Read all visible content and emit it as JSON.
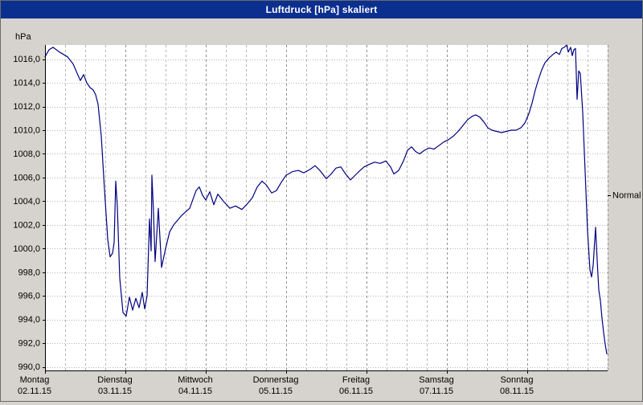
{
  "window": {
    "title": "Luftdruck [hPa] skaliert"
  },
  "colors": {
    "titlebar": "#0b2f8f",
    "title_text": "#ffffff",
    "window_bg": "#d6d3ce",
    "plot_bg": "#ffffff",
    "grid_minor": "#b5b5b5",
    "grid_day": "#8f8f8f",
    "axis": "#000000",
    "line": "#000080"
  },
  "chart_data": {
    "type": "line",
    "title": "Luftdruck [hPa] skaliert",
    "ylabel": "hPa",
    "xlabel": "",
    "x_unit": "days from Monday 02.11.15 00:00",
    "xlim": [
      0,
      7
    ],
    "ylim": [
      989.7,
      1017.2
    ],
    "grid": true,
    "minor_x_step": 0.25,
    "y_ticks": [
      {
        "value": 990,
        "label": "990,0"
      },
      {
        "value": 992,
        "label": "992,0"
      },
      {
        "value": 994,
        "label": "994,0"
      },
      {
        "value": 996,
        "label": "996,0"
      },
      {
        "value": 998,
        "label": "998,0"
      },
      {
        "value": 1000,
        "label": "1000,0"
      },
      {
        "value": 1002,
        "label": "1002,0"
      },
      {
        "value": 1004,
        "label": "1004,0"
      },
      {
        "value": 1006,
        "label": "1006,0"
      },
      {
        "value": 1008,
        "label": "1008,0"
      },
      {
        "value": 1010,
        "label": "1010,0"
      },
      {
        "value": 1012,
        "label": "1012,0"
      },
      {
        "value": 1014,
        "label": "1014,0"
      },
      {
        "value": 1016,
        "label": "1016,0"
      }
    ],
    "x_ticks": [
      {
        "t": 0,
        "day": "Montag",
        "date": "02.11.15"
      },
      {
        "t": 1,
        "day": "Dienstag",
        "date": "03.11.15"
      },
      {
        "t": 2,
        "day": "Mittwoch",
        "date": "04.11.15"
      },
      {
        "t": 3,
        "day": "Donnerstag",
        "date": "05.11.15"
      },
      {
        "t": 4,
        "day": "Freitag",
        "date": "06.11.15"
      },
      {
        "t": 5,
        "day": "Samstag",
        "date": "07.11.15"
      },
      {
        "t": 6,
        "day": "Sonntag",
        "date": "08.11.15"
      }
    ],
    "normal_marker": {
      "value": 1004.5,
      "label": "Normal"
    },
    "series": [
      {
        "name": "Luftdruck",
        "color": "#000080",
        "points": [
          [
            0.0,
            1016.2
          ],
          [
            0.05,
            1016.8
          ],
          [
            0.1,
            1017.0
          ],
          [
            0.18,
            1016.6
          ],
          [
            0.28,
            1016.2
          ],
          [
            0.35,
            1015.6
          ],
          [
            0.4,
            1014.8
          ],
          [
            0.44,
            1014.2
          ],
          [
            0.48,
            1014.7
          ],
          [
            0.52,
            1014.0
          ],
          [
            0.56,
            1013.6
          ],
          [
            0.6,
            1013.4
          ],
          [
            0.63,
            1013.0
          ],
          [
            0.66,
            1012.2
          ],
          [
            0.7,
            1009.5
          ],
          [
            0.74,
            1005.0
          ],
          [
            0.78,
            1000.8
          ],
          [
            0.81,
            999.3
          ],
          [
            0.84,
            999.6
          ],
          [
            0.86,
            1000.5
          ],
          [
            0.88,
            1005.7
          ],
          [
            0.9,
            1003.5
          ],
          [
            0.93,
            997.5
          ],
          [
            0.97,
            994.6
          ],
          [
            1.01,
            994.3
          ],
          [
            1.05,
            995.9
          ],
          [
            1.09,
            994.8
          ],
          [
            1.13,
            995.8
          ],
          [
            1.17,
            995.0
          ],
          [
            1.21,
            996.3
          ],
          [
            1.24,
            994.9
          ],
          [
            1.27,
            996.0
          ],
          [
            1.3,
            1002.5
          ],
          [
            1.32,
            999.8
          ],
          [
            1.33,
            1006.2
          ],
          [
            1.35,
            1003.0
          ],
          [
            1.37,
            998.9
          ],
          [
            1.41,
            1003.4
          ],
          [
            1.45,
            998.4
          ],
          [
            1.5,
            1000.0
          ],
          [
            1.55,
            1001.4
          ],
          [
            1.6,
            1002.0
          ],
          [
            1.7,
            1002.8
          ],
          [
            1.8,
            1003.4
          ],
          [
            1.88,
            1004.9
          ],
          [
            1.92,
            1005.2
          ],
          [
            1.96,
            1004.5
          ],
          [
            2.0,
            1004.1
          ],
          [
            2.05,
            1004.8
          ],
          [
            2.1,
            1003.7
          ],
          [
            2.15,
            1004.6
          ],
          [
            2.22,
            1004.0
          ],
          [
            2.3,
            1003.4
          ],
          [
            2.37,
            1003.6
          ],
          [
            2.45,
            1003.3
          ],
          [
            2.52,
            1003.8
          ],
          [
            2.58,
            1004.3
          ],
          [
            2.64,
            1005.2
          ],
          [
            2.7,
            1005.7
          ],
          [
            2.75,
            1005.4
          ],
          [
            2.82,
            1004.7
          ],
          [
            2.88,
            1004.9
          ],
          [
            2.94,
            1005.6
          ],
          [
            3.0,
            1006.2
          ],
          [
            3.08,
            1006.5
          ],
          [
            3.15,
            1006.6
          ],
          [
            3.22,
            1006.4
          ],
          [
            3.3,
            1006.7
          ],
          [
            3.36,
            1007.0
          ],
          [
            3.42,
            1006.6
          ],
          [
            3.5,
            1005.9
          ],
          [
            3.56,
            1006.3
          ],
          [
            3.62,
            1006.8
          ],
          [
            3.68,
            1006.9
          ],
          [
            3.74,
            1006.3
          ],
          [
            3.8,
            1005.8
          ],
          [
            3.86,
            1006.2
          ],
          [
            3.92,
            1006.6
          ],
          [
            3.97,
            1006.9
          ],
          [
            4.03,
            1007.1
          ],
          [
            4.1,
            1007.3
          ],
          [
            4.17,
            1007.2
          ],
          [
            4.24,
            1007.4
          ],
          [
            4.3,
            1006.9
          ],
          [
            4.34,
            1006.3
          ],
          [
            4.4,
            1006.6
          ],
          [
            4.46,
            1007.4
          ],
          [
            4.51,
            1008.3
          ],
          [
            4.56,
            1008.6
          ],
          [
            4.61,
            1008.2
          ],
          [
            4.66,
            1008.0
          ],
          [
            4.72,
            1008.3
          ],
          [
            4.78,
            1008.5
          ],
          [
            4.84,
            1008.4
          ],
          [
            4.9,
            1008.7
          ],
          [
            4.96,
            1009.0
          ],
          [
            5.02,
            1009.2
          ],
          [
            5.08,
            1009.5
          ],
          [
            5.14,
            1009.9
          ],
          [
            5.2,
            1010.4
          ],
          [
            5.26,
            1010.9
          ],
          [
            5.32,
            1011.2
          ],
          [
            5.36,
            1011.3
          ],
          [
            5.41,
            1011.1
          ],
          [
            5.46,
            1010.7
          ],
          [
            5.51,
            1010.2
          ],
          [
            5.56,
            1010.0
          ],
          [
            5.62,
            1009.9
          ],
          [
            5.68,
            1009.8
          ],
          [
            5.74,
            1009.9
          ],
          [
            5.8,
            1010.0
          ],
          [
            5.86,
            1010.0
          ],
          [
            5.92,
            1010.2
          ],
          [
            5.97,
            1010.6
          ],
          [
            6.02,
            1011.4
          ],
          [
            6.06,
            1012.3
          ],
          [
            6.1,
            1013.4
          ],
          [
            6.14,
            1014.3
          ],
          [
            6.18,
            1015.1
          ],
          [
            6.22,
            1015.7
          ],
          [
            6.27,
            1016.1
          ],
          [
            6.32,
            1016.4
          ],
          [
            6.36,
            1016.6
          ],
          [
            6.4,
            1016.4
          ],
          [
            6.43,
            1016.9
          ],
          [
            6.46,
            1017.0
          ],
          [
            6.49,
            1017.2
          ],
          [
            6.51,
            1016.6
          ],
          [
            6.54,
            1017.0
          ],
          [
            6.56,
            1016.3
          ],
          [
            6.58,
            1016.8
          ],
          [
            6.6,
            1016.9
          ],
          [
            6.62,
            1012.6
          ],
          [
            6.64,
            1015.0
          ],
          [
            6.66,
            1014.8
          ],
          [
            6.69,
            1011.5
          ],
          [
            6.72,
            1006.5
          ],
          [
            6.75,
            1001.5
          ],
          [
            6.78,
            998.2
          ],
          [
            6.8,
            997.6
          ],
          [
            6.82,
            998.6
          ],
          [
            6.85,
            1001.8
          ],
          [
            6.87,
            999.0
          ],
          [
            6.89,
            996.5
          ],
          [
            6.91,
            995.6
          ],
          [
            6.93,
            994.1
          ],
          [
            6.95,
            992.9
          ],
          [
            6.97,
            991.9
          ],
          [
            6.99,
            991.1
          ]
        ]
      }
    ]
  }
}
